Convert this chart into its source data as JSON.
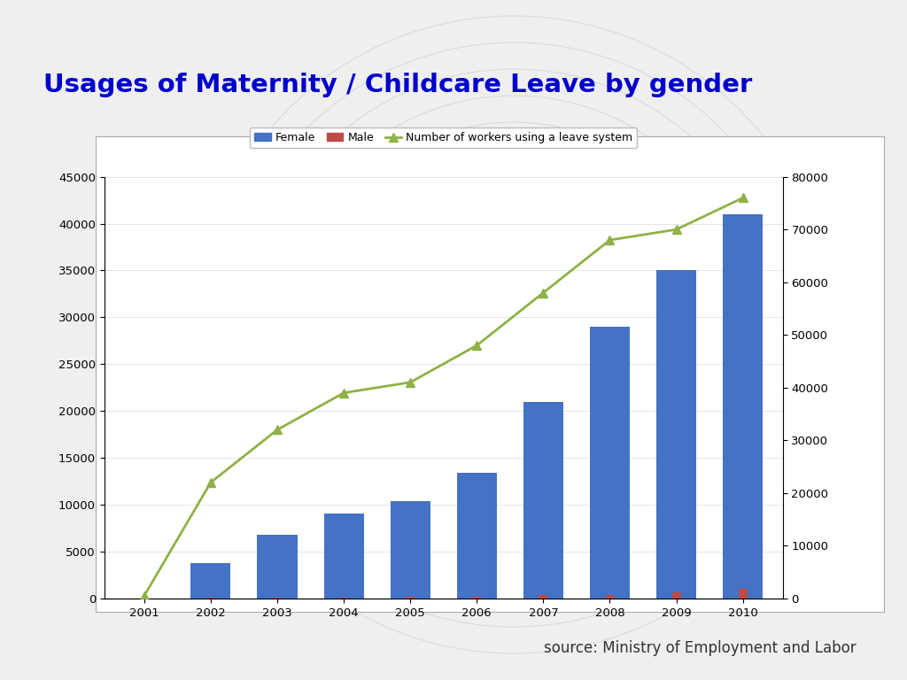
{
  "years": [
    2001,
    2002,
    2003,
    2004,
    2005,
    2006,
    2007,
    2008,
    2009,
    2010
  ],
  "female": [
    0,
    3800,
    6800,
    9100,
    10400,
    13400,
    21000,
    29000,
    35000,
    41000
  ],
  "male": [
    0,
    50,
    100,
    100,
    200,
    200,
    400,
    400,
    600,
    1000
  ],
  "line_values": [
    500,
    22000,
    32000,
    39000,
    41000,
    48000,
    58000,
    68000,
    70000,
    76000
  ],
  "female_color": "#4472C4",
  "male_color": "#BE4B48",
  "line_color": "#8EB245",
  "title": "Usages of Maternity / Childcare Leave by gender",
  "title_color": "#0000CC",
  "source_text": "source: Ministry of Employment and Labor",
  "ylim_left": [
    0,
    45000
  ],
  "ylim_right": [
    0,
    80000
  ],
  "yticks_left": [
    0,
    5000,
    10000,
    15000,
    20000,
    25000,
    30000,
    35000,
    40000,
    45000
  ],
  "yticks_right": [
    0,
    10000,
    20000,
    30000,
    40000,
    50000,
    60000,
    70000,
    80000
  ],
  "background_color": "#FFFFFF",
  "slide_bg": "#EFEFEF",
  "top_bar_color": "#6AA84F",
  "legend_labels": [
    "Female",
    "Male",
    "Number of workers using a leave system"
  ],
  "bar_width": 0.6
}
